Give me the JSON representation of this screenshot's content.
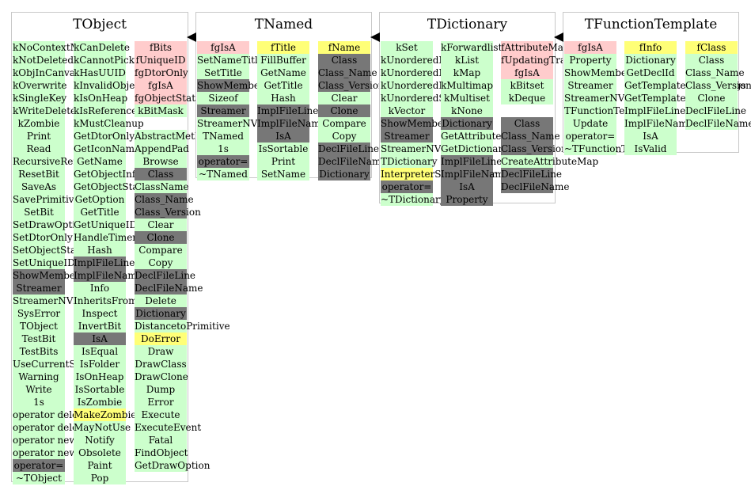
{
  "classes": [
    {
      "title": "TObject",
      "columns": [
        [
          {
            "t": "kNoContextMenu",
            "c": "m"
          },
          {
            "t": "kNotDeleted",
            "c": "m"
          },
          {
            "t": "kObjInCanvas",
            "c": "m"
          },
          {
            "t": "kOverwrite",
            "c": "m"
          },
          {
            "t": "kSingleKey",
            "c": "m"
          },
          {
            "t": "kWriteDelete",
            "c": "m"
          },
          {
            "t": "kZombie",
            "c": "m"
          },
          {
            "t": "Print",
            "c": "m"
          },
          {
            "t": "Read",
            "c": "m"
          },
          {
            "t": "RecursiveRemove",
            "c": "m"
          },
          {
            "t": "ResetBit",
            "c": "m"
          },
          {
            "t": "SaveAs",
            "c": "m"
          },
          {
            "t": "SavePrimitive",
            "c": "m"
          },
          {
            "t": "SetBit",
            "c": "m"
          },
          {
            "t": "SetDrawOption",
            "c": "m"
          },
          {
            "t": "SetDtorOnly",
            "c": "m"
          },
          {
            "t": "SetObjectStat",
            "c": "m"
          },
          {
            "t": "SetUniqueID",
            "c": "m"
          },
          {
            "t": "ShowMembers",
            "c": "g"
          },
          {
            "t": "Streamer",
            "c": "g"
          },
          {
            "t": "StreamerNVirtual",
            "c": "m"
          },
          {
            "t": "SysError",
            "c": "m"
          },
          {
            "t": "TObject",
            "c": "m"
          },
          {
            "t": "TestBit",
            "c": "m"
          },
          {
            "t": "TestBits",
            "c": "m"
          },
          {
            "t": "UseCurrentStyle",
            "c": "m"
          },
          {
            "t": "Warning",
            "c": "m"
          },
          {
            "t": "Write",
            "c": "m"
          },
          {
            "t": "1s",
            "c": "m"
          },
          {
            "t": "operator delete",
            "c": "m"
          },
          {
            "t": "operator delete[]",
            "c": "m"
          },
          {
            "t": "operator new",
            "c": "m"
          },
          {
            "t": "operator new[]",
            "c": "m"
          },
          {
            "t": "operator=",
            "c": "g"
          },
          {
            "t": "~TObject",
            "c": "m"
          }
        ],
        [
          {
            "t": "kCanDelete",
            "c": "m"
          },
          {
            "t": "kCannotPick",
            "c": "m"
          },
          {
            "t": "kHasUUID",
            "c": "m"
          },
          {
            "t": "kInvalidObject",
            "c": "m"
          },
          {
            "t": "kIsOnHeap",
            "c": "m"
          },
          {
            "t": "kIsReferenced",
            "c": "m"
          },
          {
            "t": "kMustCleanup",
            "c": "m"
          },
          {
            "t": "GetDtorOnly",
            "c": "m"
          },
          {
            "t": "GetIconName",
            "c": "m"
          },
          {
            "t": "GetName",
            "c": "m"
          },
          {
            "t": "GetObjectInfo",
            "c": "m"
          },
          {
            "t": "GetObjectStat",
            "c": "m"
          },
          {
            "t": "GetOption",
            "c": "m"
          },
          {
            "t": "GetTitle",
            "c": "m"
          },
          {
            "t": "GetUniqueID",
            "c": "m"
          },
          {
            "t": "HandleTimer",
            "c": "m"
          },
          {
            "t": "Hash",
            "c": "m"
          },
          {
            "t": "ImplFileLine",
            "c": "g"
          },
          {
            "t": "ImplFileName",
            "c": "g"
          },
          {
            "t": "Info",
            "c": "m"
          },
          {
            "t": "InheritsFrom",
            "c": "m"
          },
          {
            "t": "Inspect",
            "c": "m"
          },
          {
            "t": "InvertBit",
            "c": "m"
          },
          {
            "t": "IsA",
            "c": "g"
          },
          {
            "t": "IsEqual",
            "c": "m"
          },
          {
            "t": "IsFolder",
            "c": "m"
          },
          {
            "t": "IsOnHeap",
            "c": "m"
          },
          {
            "t": "IsSortable",
            "c": "m"
          },
          {
            "t": "IsZombie",
            "c": "m"
          },
          {
            "t": "MakeZombie",
            "c": "y"
          },
          {
            "t": "MayNotUse",
            "c": "m"
          },
          {
            "t": "Notify",
            "c": "m"
          },
          {
            "t": "Obsolete",
            "c": "m"
          },
          {
            "t": "Paint",
            "c": "m"
          },
          {
            "t": "Pop",
            "c": "m"
          }
        ],
        [
          {
            "t": "fBits",
            "c": "d"
          },
          {
            "t": "fUniqueID",
            "c": "d"
          },
          {
            "t": "fgDtorOnly",
            "c": "d"
          },
          {
            "t": "fgIsA",
            "c": "d"
          },
          {
            "t": "fgObjectStat",
            "c": "d"
          },
          {
            "t": "kBitMask",
            "c": "m"
          },
          {
            "t": "",
            "c": ""
          },
          {
            "t": "AbstractMethod",
            "c": "m"
          },
          {
            "t": "AppendPad",
            "c": "m"
          },
          {
            "t": "Browse",
            "c": "m"
          },
          {
            "t": "Class",
            "c": "g"
          },
          {
            "t": "ClassName",
            "c": "m"
          },
          {
            "t": "Class_Name",
            "c": "g"
          },
          {
            "t": "Class_Version",
            "c": "g"
          },
          {
            "t": "Clear",
            "c": "m"
          },
          {
            "t": "Clone",
            "c": "g"
          },
          {
            "t": "Compare",
            "c": "m"
          },
          {
            "t": "Copy",
            "c": "m"
          },
          {
            "t": "DeclFileLine",
            "c": "g"
          },
          {
            "t": "DeclFileName",
            "c": "g"
          },
          {
            "t": "Delete",
            "c": "m"
          },
          {
            "t": "Dictionary",
            "c": "g"
          },
          {
            "t": "DistancetoPrimitive",
            "c": "m"
          },
          {
            "t": "DoError",
            "c": "y"
          },
          {
            "t": "Draw",
            "c": "m"
          },
          {
            "t": "DrawClass",
            "c": "m"
          },
          {
            "t": "DrawClone",
            "c": "m"
          },
          {
            "t": "Dump",
            "c": "m"
          },
          {
            "t": "Error",
            "c": "m"
          },
          {
            "t": "Execute",
            "c": "m"
          },
          {
            "t": "ExecuteEvent",
            "c": "m"
          },
          {
            "t": "Fatal",
            "c": "m"
          },
          {
            "t": "FindObject",
            "c": "m"
          },
          {
            "t": "GetDrawOption",
            "c": "m"
          }
        ]
      ]
    },
    {
      "title": "TNamed",
      "columns": [
        [
          {
            "t": "fgIsA",
            "c": "d"
          },
          {
            "t": "SetNameTitle",
            "c": "m"
          },
          {
            "t": "SetTitle",
            "c": "m"
          },
          {
            "t": "ShowMembers",
            "c": "g"
          },
          {
            "t": "Sizeof",
            "c": "m"
          },
          {
            "t": "Streamer",
            "c": "g"
          },
          {
            "t": "StreamerNVirtual",
            "c": "m"
          },
          {
            "t": "TNamed",
            "c": "m"
          },
          {
            "t": "1s",
            "c": "m"
          },
          {
            "t": "operator=",
            "c": "g"
          },
          {
            "t": "~TNamed",
            "c": "m"
          }
        ],
        [
          {
            "t": "fTitle",
            "c": "y"
          },
          {
            "t": "FillBuffer",
            "c": "m"
          },
          {
            "t": "GetName",
            "c": "m"
          },
          {
            "t": "GetTitle",
            "c": "m"
          },
          {
            "t": "Hash",
            "c": "m"
          },
          {
            "t": "ImplFileLine",
            "c": "g"
          },
          {
            "t": "ImplFileName",
            "c": "g"
          },
          {
            "t": "IsA",
            "c": "g"
          },
          {
            "t": "IsSortable",
            "c": "m"
          },
          {
            "t": "Print",
            "c": "m"
          },
          {
            "t": "SetName",
            "c": "m"
          }
        ],
        [
          {
            "t": "fName",
            "c": "y"
          },
          {
            "t": "Class",
            "c": "g"
          },
          {
            "t": "Class_Name",
            "c": "g"
          },
          {
            "t": "Class_Version",
            "c": "g"
          },
          {
            "t": "Clear",
            "c": "m"
          },
          {
            "t": "Clone",
            "c": "g"
          },
          {
            "t": "Compare",
            "c": "m"
          },
          {
            "t": "Copy",
            "c": "m"
          },
          {
            "t": "DeclFileLine",
            "c": "g"
          },
          {
            "t": "DeclFileName",
            "c": "g"
          },
          {
            "t": "Dictionary",
            "c": "g"
          }
        ]
      ]
    },
    {
      "title": "TDictionary",
      "columns": [
        [
          {
            "t": "kSet",
            "c": "m"
          },
          {
            "t": "kUnorderedMap",
            "c": "m"
          },
          {
            "t": "kUnorderedMultimap",
            "c": "m"
          },
          {
            "t": "kUnorderedMultiset",
            "c": "m"
          },
          {
            "t": "kUnorderedSet",
            "c": "m"
          },
          {
            "t": "kVector",
            "c": "m"
          },
          {
            "t": "ShowMembers",
            "c": "g"
          },
          {
            "t": "Streamer",
            "c": "g"
          },
          {
            "t": "StreamerNVirtual",
            "c": "m"
          },
          {
            "t": "TDictionary",
            "c": "m"
          },
          {
            "t": "InterpreterStateMarker",
            "c": "y"
          },
          {
            "t": "operator=",
            "c": "g"
          },
          {
            "t": "~TDictionary",
            "c": "m"
          }
        ],
        [
          {
            "t": "kForwardlist",
            "c": "m"
          },
          {
            "t": "kList",
            "c": "m"
          },
          {
            "t": "kMap",
            "c": "m"
          },
          {
            "t": "kMultimap",
            "c": "m"
          },
          {
            "t": "kMultiset",
            "c": "m"
          },
          {
            "t": "kNone",
            "c": "m"
          },
          {
            "t": "Dictionary",
            "c": "g"
          },
          {
            "t": "GetAttributeMap",
            "c": "m"
          },
          {
            "t": "GetDictionary",
            "c": "m"
          },
          {
            "t": "ImplFileLine",
            "c": "g"
          },
          {
            "t": "ImplFileName",
            "c": "g"
          },
          {
            "t": "IsA",
            "c": "g"
          },
          {
            "t": "Property",
            "c": "g"
          }
        ],
        [
          {
            "t": "fAttributeMap",
            "c": "d"
          },
          {
            "t": "fUpdatingTransactionCount",
            "c": "d"
          },
          {
            "t": "fgIsA",
            "c": "d"
          },
          {
            "t": "kBitset",
            "c": "m"
          },
          {
            "t": "kDeque",
            "c": "m"
          },
          {
            "t": "",
            "c": ""
          },
          {
            "t": "Class",
            "c": "g"
          },
          {
            "t": "Class_Name",
            "c": "g"
          },
          {
            "t": "Class_Version",
            "c": "g"
          },
          {
            "t": "CreateAttributeMap",
            "c": "m"
          },
          {
            "t": "DeclFileLine",
            "c": "g"
          },
          {
            "t": "DeclFileName",
            "c": "g"
          }
        ]
      ]
    },
    {
      "title": "TFunctionTemplate",
      "columns": [
        [
          {
            "t": "fgIsA",
            "c": "d"
          },
          {
            "t": "Property",
            "c": "m"
          },
          {
            "t": "ShowMembers",
            "c": "m"
          },
          {
            "t": "Streamer",
            "c": "m"
          },
          {
            "t": "StreamerNVirtual",
            "c": "m"
          },
          {
            "t": "TFunctionTemplate",
            "c": "m"
          },
          {
            "t": "Update",
            "c": "m"
          },
          {
            "t": "operator=",
            "c": "m"
          },
          {
            "t": "~TFunctionTemplate",
            "c": "m"
          }
        ],
        [
          {
            "t": "fInfo",
            "c": "y"
          },
          {
            "t": "Dictionary",
            "c": "m"
          },
          {
            "t": "GetDeclId",
            "c": "m"
          },
          {
            "t": "GetTemplateMinReqArgs",
            "c": "m"
          },
          {
            "t": "GetTemplateNargs",
            "c": "m"
          },
          {
            "t": "ImplFileLine",
            "c": "m"
          },
          {
            "t": "ImplFileName",
            "c": "m"
          },
          {
            "t": "IsA",
            "c": "m"
          },
          {
            "t": "IsValid",
            "c": "m"
          }
        ],
        [
          {
            "t": "fClass",
            "c": "y"
          },
          {
            "t": "Class",
            "c": "m"
          },
          {
            "t": "Class_Name",
            "c": "m"
          },
          {
            "t": "Class_Version",
            "c": "m"
          },
          {
            "t": "Clone",
            "c": "m"
          },
          {
            "t": "DeclFileLine",
            "c": "m"
          },
          {
            "t": "DeclFileName",
            "c": "m"
          }
        ]
      ]
    }
  ]
}
